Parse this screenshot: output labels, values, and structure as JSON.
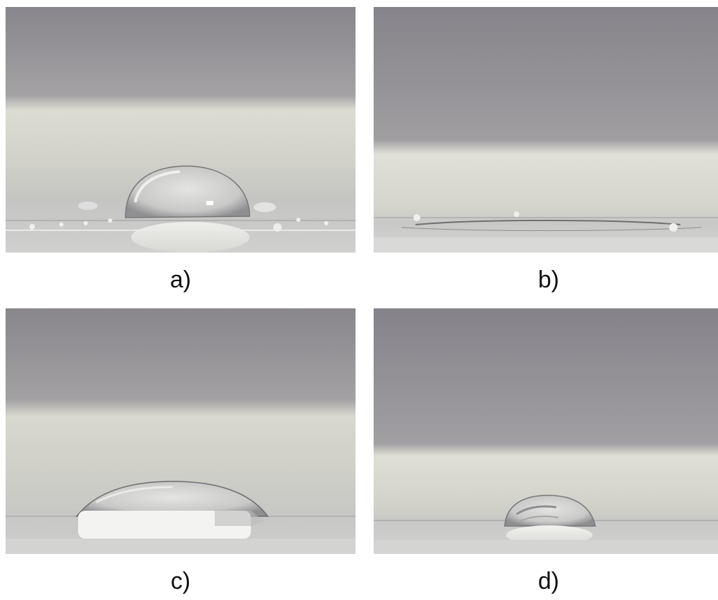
{
  "panels": [
    {
      "id": "a",
      "caption": "a)"
    },
    {
      "id": "b",
      "caption": "b)"
    },
    {
      "id": "c",
      "caption": "c)"
    },
    {
      "id": "d",
      "caption": "d)"
    }
  ]
}
